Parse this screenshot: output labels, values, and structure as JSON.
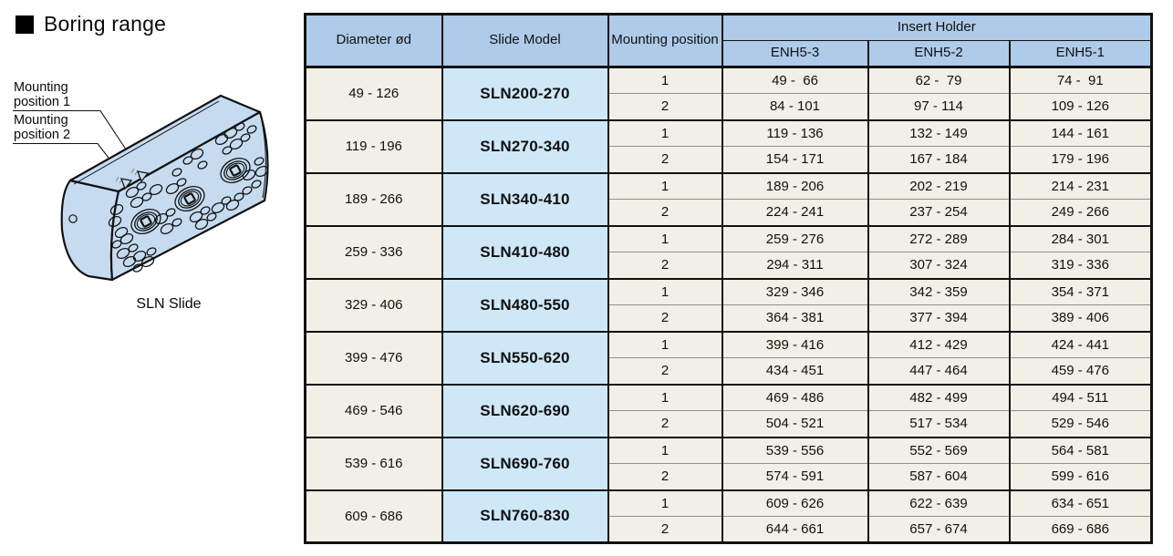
{
  "page": {
    "title": "Boring range"
  },
  "diagram": {
    "labels": {
      "pos1": [
        "Mounting",
        "position 1"
      ],
      "pos2": [
        "Mounting",
        "position 2"
      ]
    },
    "caption": "SLN Slide"
  },
  "table": {
    "headers": {
      "diameter": "Diameter ød",
      "slide_model": "Slide Model",
      "mounting": "Mounting position",
      "insert_holder": "Insert Holder",
      "enh_columns": [
        "ENH5-3",
        "ENH5-2",
        "ENH5-1"
      ]
    },
    "groups": [
      {
        "diameter": "49 - 126",
        "model": "SLN200-270",
        "rows": [
          {
            "position": "1",
            "values": [
              "49 -  66",
              "62 -  79",
              "74 -  91"
            ]
          },
          {
            "position": "2",
            "values": [
              "84 - 101",
              "97 - 114",
              "109 - 126"
            ]
          }
        ]
      },
      {
        "diameter": "119 - 196",
        "model": "SLN270-340",
        "rows": [
          {
            "position": "1",
            "values": [
              "119 - 136",
              "132 - 149",
              "144 - 161"
            ]
          },
          {
            "position": "2",
            "values": [
              "154 - 171",
              "167 - 184",
              "179 - 196"
            ]
          }
        ]
      },
      {
        "diameter": "189 - 266",
        "model": "SLN340-410",
        "rows": [
          {
            "position": "1",
            "values": [
              "189 - 206",
              "202 - 219",
              "214 - 231"
            ]
          },
          {
            "position": "2",
            "values": [
              "224 - 241",
              "237 - 254",
              "249 - 266"
            ]
          }
        ]
      },
      {
        "diameter": "259 - 336",
        "model": "SLN410-480",
        "rows": [
          {
            "position": "1",
            "values": [
              "259 - 276",
              "272 - 289",
              "284 - 301"
            ]
          },
          {
            "position": "2",
            "values": [
              "294 - 311",
              "307 - 324",
              "319 - 336"
            ]
          }
        ]
      },
      {
        "diameter": "329 - 406",
        "model": "SLN480-550",
        "rows": [
          {
            "position": "1",
            "values": [
              "329 - 346",
              "342 - 359",
              "354 - 371"
            ]
          },
          {
            "position": "2",
            "values": [
              "364 - 381",
              "377 - 394",
              "389 - 406"
            ]
          }
        ]
      },
      {
        "diameter": "399 - 476",
        "model": "SLN550-620",
        "rows": [
          {
            "position": "1",
            "values": [
              "399 - 416",
              "412 - 429",
              "424 - 441"
            ]
          },
          {
            "position": "2",
            "values": [
              "434 - 451",
              "447 - 464",
              "459 - 476"
            ]
          }
        ]
      },
      {
        "diameter": "469 - 546",
        "model": "SLN620-690",
        "rows": [
          {
            "position": "1",
            "values": [
              "469 - 486",
              "482 - 499",
              "494 - 511"
            ]
          },
          {
            "position": "2",
            "values": [
              "504 - 521",
              "517 - 534",
              "529 - 546"
            ]
          }
        ]
      },
      {
        "diameter": "539 - 616",
        "model": "SLN690-760",
        "rows": [
          {
            "position": "1",
            "values": [
              "539 - 556",
              "552 - 569",
              "564 - 581"
            ]
          },
          {
            "position": "2",
            "values": [
              "574 - 591",
              "587 - 604",
              "599 - 616"
            ]
          }
        ]
      },
      {
        "diameter": "609 - 686",
        "model": "SLN760-830",
        "rows": [
          {
            "position": "1",
            "values": [
              "609 - 626",
              "622 - 639",
              "634 - 651"
            ]
          },
          {
            "position": "2",
            "values": [
              "644 - 661",
              "657 - 674",
              "669 - 686"
            ]
          }
        ]
      }
    ]
  },
  "colors": {
    "header_bg": "#aecbe9",
    "model_bg": "#cfe8f8",
    "cell_bg": "#f2efe6",
    "block_fill": "#c6dbf0",
    "border": "#111111"
  }
}
